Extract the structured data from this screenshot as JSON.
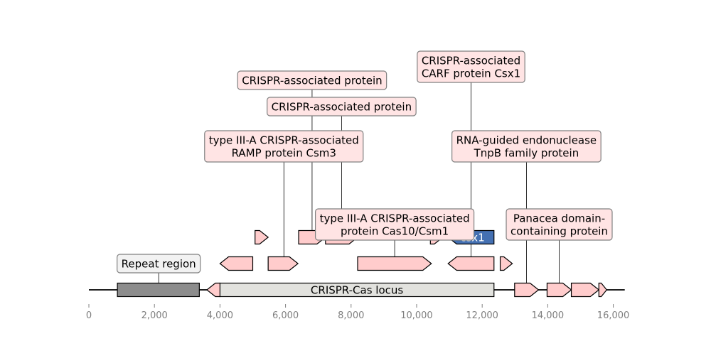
{
  "axis": {
    "min": 0,
    "max": 16400,
    "ticks": [
      {
        "value": 0,
        "label": "0"
      },
      {
        "value": 2000,
        "label": "2,000"
      },
      {
        "value": 4000,
        "label": "4,000"
      },
      {
        "value": 6000,
        "label": "6,000"
      },
      {
        "value": 8000,
        "label": "8,000"
      },
      {
        "value": 10000,
        "label": "10,000"
      },
      {
        "value": 12000,
        "label": "12,000"
      },
      {
        "value": 14000,
        "label": "14,000"
      },
      {
        "value": 16000,
        "label": "16,000"
      }
    ]
  },
  "sequence": {
    "start": 0,
    "end": 16350
  },
  "regions": [
    {
      "id": "repeat-region",
      "start": 870,
      "end": 3370,
      "fill": "#8c8c8c"
    },
    {
      "id": "crispr-cas-locus",
      "start": 4000,
      "end": 12360,
      "fill": "#e2e2de",
      "label": "CRISPR-Cas locus"
    }
  ],
  "genes": [
    {
      "id": "gene-1",
      "start": 3600,
      "end": 4000,
      "strand": -1,
      "row": 0,
      "fill": "#ffcccc"
    },
    {
      "id": "gene-2",
      "start": 12990,
      "end": 13720,
      "strand": 1,
      "row": 0,
      "fill": "#ffcccc"
    },
    {
      "id": "gene-3",
      "start": 13980,
      "end": 14720,
      "strand": 1,
      "row": 0,
      "fill": "#ffcccc"
    },
    {
      "id": "gene-4",
      "start": 14720,
      "end": 15560,
      "strand": 1,
      "row": 0,
      "fill": "#ffcccc"
    },
    {
      "id": "gene-5",
      "start": 15560,
      "end": 15800,
      "strand": 1,
      "row": 0,
      "fill": "#ffcccc"
    },
    {
      "id": "gene-6",
      "start": 4000,
      "end": 5000,
      "strand": -1,
      "row": 1,
      "fill": "#ffcccc"
    },
    {
      "id": "gene-7",
      "start": 5470,
      "end": 6380,
      "strand": 1,
      "row": 1,
      "fill": "#ffcccc"
    },
    {
      "id": "gene-8",
      "start": 8200,
      "end": 10450,
      "strand": 1,
      "row": 1,
      "fill": "#ffcccc"
    },
    {
      "id": "gene-9",
      "start": 10960,
      "end": 12360,
      "strand": -1,
      "row": 1,
      "fill": "#ffcccc"
    },
    {
      "id": "gene-10",
      "start": 12550,
      "end": 12920,
      "strand": 1,
      "row": 1,
      "fill": "#ffcccc"
    },
    {
      "id": "gene-11",
      "start": 5070,
      "end": 5470,
      "strand": 1,
      "row": 2,
      "fill": "#ffcccc"
    },
    {
      "id": "gene-12",
      "start": 6400,
      "end": 7220,
      "strand": 1,
      "row": 2,
      "fill": "#ffcccc"
    },
    {
      "id": "gene-13",
      "start": 7220,
      "end": 8200,
      "strand": 1,
      "row": 2,
      "fill": "#ffcccc"
    },
    {
      "id": "gene-14",
      "start": 10420,
      "end": 10800,
      "strand": 1,
      "row": 2,
      "fill": "#ffcccc"
    },
    {
      "id": "gene-15",
      "start": 10960,
      "end": 12360,
      "strand": -1,
      "row": 2,
      "fill": "#4470b2",
      "label": "csx1",
      "label_color": "#ffffff"
    }
  ],
  "annotations": [
    {
      "id": "repeat-region",
      "lines": [
        "Repeat region"
      ],
      "x": 2130,
      "box_fill": "#f2f2f2",
      "line_to": "sequence",
      "level": 0
    },
    {
      "id": "csm3",
      "lines": [
        "type III-A CRISPR-associated",
        "RAMP protein Csm3"
      ],
      "x": 5950,
      "line_to": "row1",
      "level": 2
    },
    {
      "id": "cap-1",
      "lines": [
        "CRISPR-associated protein"
      ],
      "x": 6810,
      "line_to": "row2",
      "level": 4
    },
    {
      "id": "cap-2",
      "lines": [
        "CRISPR-associated protein"
      ],
      "x": 7710,
      "line_to": "row2",
      "level": 3
    },
    {
      "id": "cas10",
      "lines": [
        "type III-A CRISPR-associated",
        "protein Cas10/Csm1"
      ],
      "x": 9330,
      "line_to": "row1",
      "level": 1
    },
    {
      "id": "csx1",
      "lines": [
        "CRISPR-associated",
        "CARF protein Csx1"
      ],
      "x": 11660,
      "line_to": "row1",
      "level": 5
    },
    {
      "id": "tnpb",
      "lines": [
        "RNA-guided endonuclease",
        "TnpB family protein"
      ],
      "x": 13350,
      "line_to": "sequence",
      "level": 2
    },
    {
      "id": "panacea",
      "lines": [
        "Panacea domain-",
        "containing protein"
      ],
      "x": 14350,
      "line_to": "sequence",
      "level": 1
    }
  ],
  "colors": {
    "outline": "#000000",
    "leader": "#000000",
    "tick": "#808080",
    "box_fill": "#ffe4e4",
    "box_edge": "#808080"
  }
}
